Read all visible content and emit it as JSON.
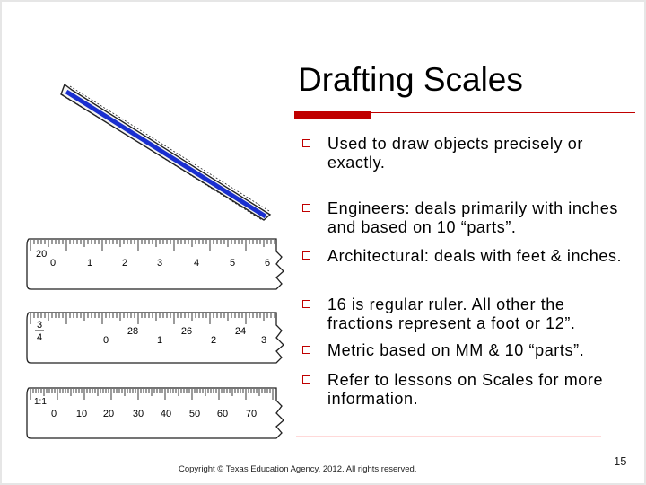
{
  "slide": {
    "title": "Drafting Scales",
    "bullets": [
      "Used to draw objects precisely or exactly.",
      "Engineers: deals primarily with inches and based on 10 “parts”.",
      "Architectural: deals with feet & inches.",
      "16 is regular ruler. All other the fractions represent a foot or 12”.",
      "Metric based on MM & 10 “parts”.",
      "Refer to lessons on Scales for more information."
    ],
    "copyright": "Copyright © Texas Education Agency, 2012. All rights reserved.",
    "page_number": "15"
  },
  "figure": {
    "scale_1": {
      "side_label": "20",
      "numbers": [
        "0",
        "1",
        "2",
        "3",
        "4",
        "5",
        "6"
      ]
    },
    "scale_2": {
      "fraction_top": "3",
      "fraction_bottom": "4",
      "numbers": [
        "0",
        "28",
        "1",
        "26",
        "2",
        "24",
        "3"
      ]
    },
    "scale_3": {
      "side_label": "1:1",
      "numbers": [
        "0",
        "10",
        "20",
        "30",
        "40",
        "50",
        "60",
        "70"
      ]
    }
  },
  "colors": {
    "accent_red": "#c00000",
    "scale_blue": "#1a2fd0",
    "ink": "#000000"
  }
}
